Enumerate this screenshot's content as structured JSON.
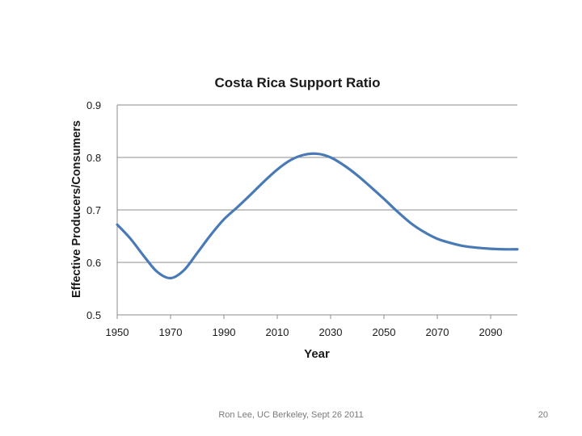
{
  "slide": {
    "footer": "Ron Lee, UC Berkeley, Sept 26 2011",
    "page_number": "20"
  },
  "chart_data": {
    "type": "line",
    "title": "Costa Rica Support Ratio",
    "xlabel": "Year",
    "ylabel": "Effective Producers/Consumers",
    "xlim": [
      1950,
      2100
    ],
    "ylim": [
      0.5,
      0.9
    ],
    "x_ticks": [
      1950,
      1970,
      1990,
      2010,
      2030,
      2050,
      2070,
      2090
    ],
    "y_ticks": [
      "0.5",
      "0.6",
      "0.7",
      "0.8",
      "0.9"
    ],
    "grid": true,
    "line_color": "#4a7ab5",
    "series": [
      {
        "x": [
          1950,
          1955,
          1960,
          1965,
          1970,
          1975,
          1980,
          1985,
          1990,
          1995,
          2000,
          2005,
          2010,
          2015,
          2020,
          2025,
          2030,
          2035,
          2040,
          2045,
          2050,
          2055,
          2060,
          2065,
          2070,
          2075,
          2080,
          2085,
          2090,
          2095,
          2100
        ],
        "values": [
          0.672,
          0.645,
          0.612,
          0.582,
          0.57,
          0.585,
          0.618,
          0.652,
          0.682,
          0.705,
          0.729,
          0.754,
          0.777,
          0.795,
          0.805,
          0.807,
          0.8,
          0.785,
          0.766,
          0.744,
          0.721,
          0.697,
          0.675,
          0.658,
          0.645,
          0.637,
          0.631,
          0.628,
          0.626,
          0.625,
          0.625
        ]
      }
    ]
  }
}
